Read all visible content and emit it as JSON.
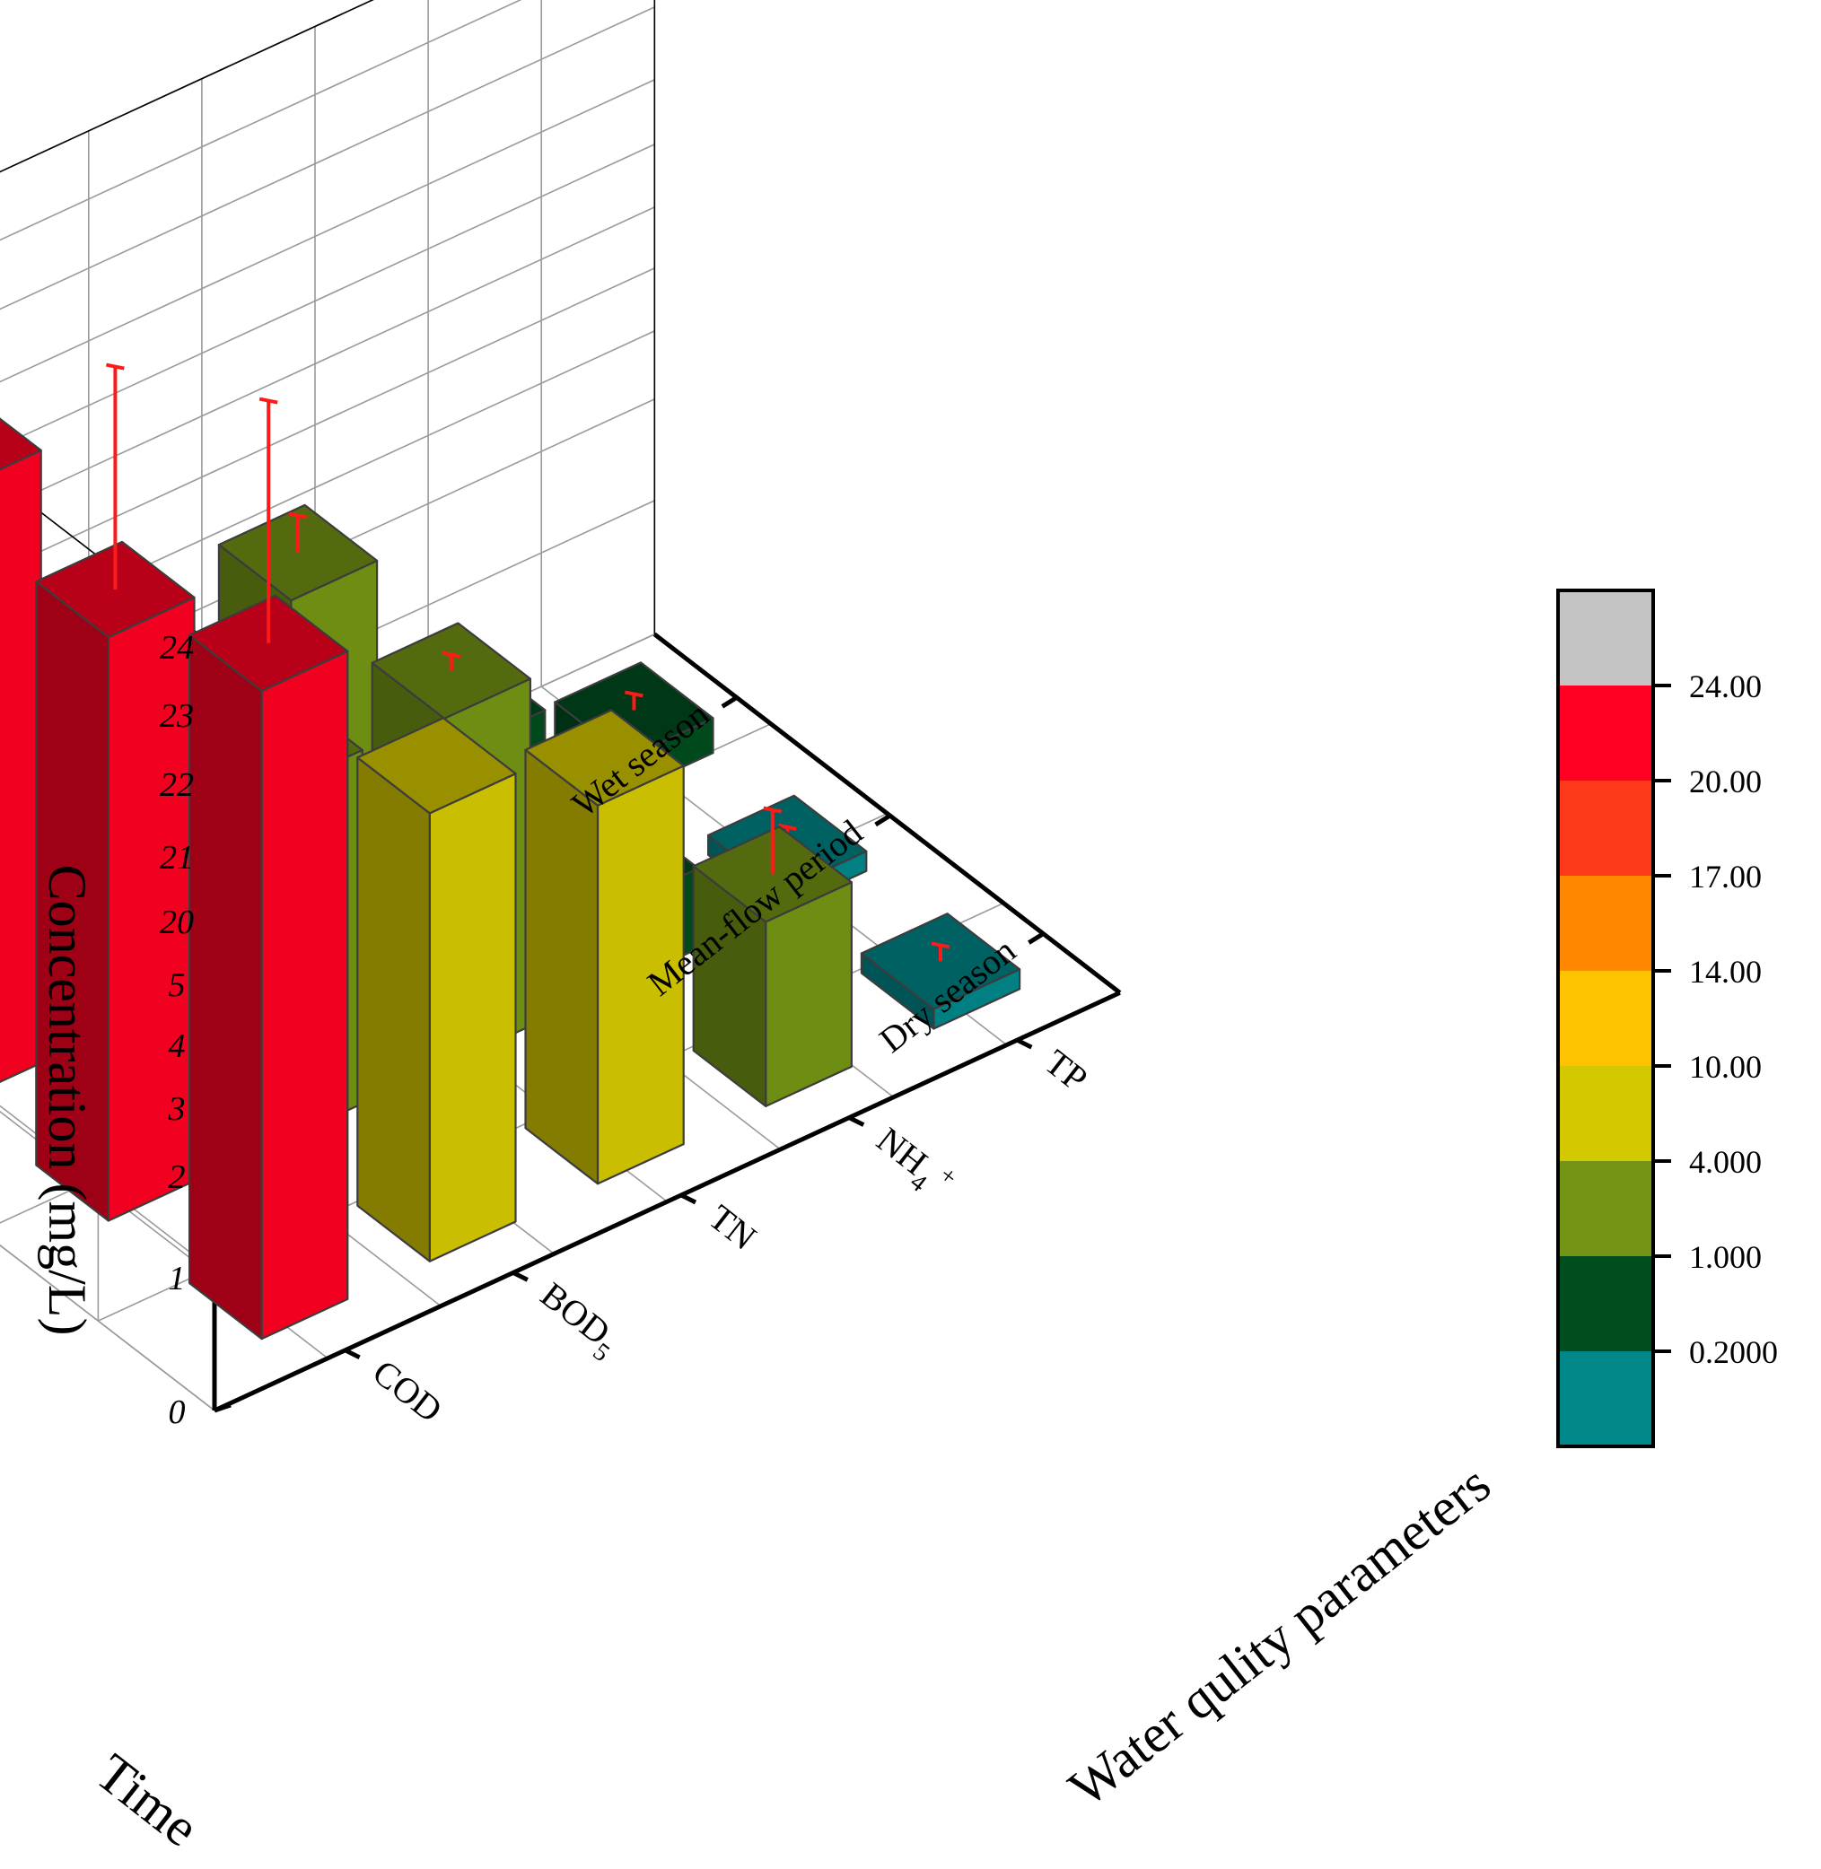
{
  "chart_data": {
    "type": "bar3d",
    "axes": {
      "y_title": "Concentration (mg/L)",
      "x_title": "Time",
      "z_title": "Water qulity parameters",
      "y_ticks": [
        "0",
        "1",
        "2",
        "3",
        "4",
        "5",
        "20",
        "21",
        "22",
        "23",
        "24"
      ],
      "y_breaks": [
        [
          2,
          3
        ],
        [
          5,
          20
        ]
      ]
    },
    "time_categories": [
      "Dry season",
      "Mean-flow period",
      "Wet season"
    ],
    "parameters": [
      "TP",
      "NH4+",
      "TN",
      "BOD5",
      "COD"
    ],
    "parameter_labels": {
      "cod": "COD",
      "bod_main": "BOD",
      "bod_sub": "5",
      "tn": "TN",
      "nh_main": "NH",
      "nh_sub": "4",
      "nh_sup": "+",
      "tp": "TP"
    },
    "series": [
      {
        "name": "Dry season",
        "values": {
          "TP": 0.12,
          "NH4+": 1.5,
          "TN": 4.2,
          "BOD5": 10.0,
          "COD": 22.3
        },
        "errors": {
          "TP": 0.05,
          "NH4+": 0.7,
          "TN": 0.0,
          "BOD5": 0.0,
          "COD": 3.5
        }
      },
      {
        "name": "Mean-flow period",
        "values": {
          "TP": 0.12,
          "NH4+": 0.6,
          "TN": 3.7,
          "BOD5": 3.8,
          "COD": 21.4
        },
        "errors": {
          "TP": 0.02,
          "NH4+": 0.15,
          "TN": 0.2,
          "BOD5": 0.7,
          "COD": 3.2
        }
      },
      {
        "name": "Wet season",
        "values": {
          "TP": 0.26,
          "NH4+": 0.9,
          "TN": 3.7,
          "BOD5": 3.5,
          "COD": 21.8
        },
        "errors": {
          "TP": 0.04,
          "NH4+": 0.0,
          "TN": 0.6,
          "BOD5": 0.6,
          "COD": 3.0
        }
      }
    ],
    "colorbar": {
      "labels": [
        "24.00",
        "20.00",
        "17.00",
        "14.00",
        "10.00",
        "4.000",
        "1.000",
        "0.2000"
      ],
      "colors": [
        "#c4c4c4",
        "#ff0022",
        "#ff3a1a",
        "#ff8800",
        "#ffc200",
        "#d4c800",
        "#739414",
        "#004d1e",
        "#00878a"
      ]
    },
    "error_bar_color": "#ff1a1a"
  }
}
